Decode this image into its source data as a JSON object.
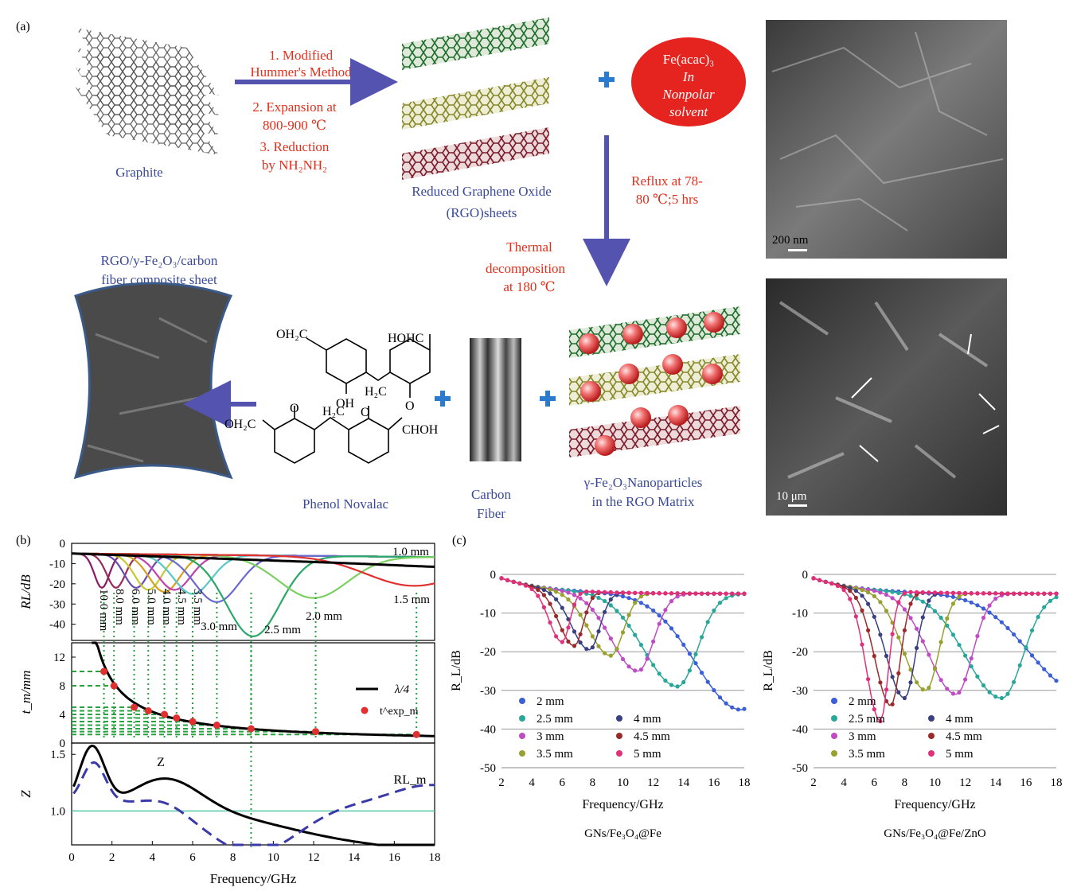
{
  "panel_a": {
    "label": "(a)",
    "graphite_label": "Graphite",
    "steps": [
      "1. Modified",
      "Hummer's Method",
      "2. Expansion at",
      "800-900 ℃",
      "3. Reduction",
      "by NH₂NH₂"
    ],
    "rgo_label_1": "Reduced Graphene Oxide",
    "rgo_label_2": "(RGO)sheets",
    "feacac_lines": [
      "Fe(acac)₃",
      "In",
      "Nonpolar",
      "solvent"
    ],
    "reflux_lines": [
      "Reflux at 78-",
      "80 ℃;5 hrs"
    ],
    "thermal_lines": [
      "Thermal",
      "decomposition",
      "at 180 ℃"
    ],
    "composite_lines": [
      "RGO/y-Fe₂O₃/carbon",
      "fiber composite sheet"
    ],
    "phenol_label": "Phenol Novalac",
    "chem_groups": [
      "OH₂C",
      "HOHC",
      "OH",
      "H₂C",
      "O",
      "O",
      "O",
      "OH₂C",
      "H₂C",
      "CHOH"
    ],
    "carbon_fiber_lines": [
      "Carbon",
      "Fiber"
    ],
    "nanoparticle_lines": [
      "γ-Fe₂O₃Nanoparticles",
      "in the RGO Matrix"
    ],
    "sem_scale_1": "200 nm",
    "sem_scale_2": "10 μm"
  },
  "colors": {
    "red_text": "#e0301e",
    "blue_text": "#3a4a9a",
    "arrow": "#5553b0",
    "plus": "#2a7ad0"
  },
  "chart_data": [
    {
      "type": "line",
      "panel": "(b) top",
      "ylabel": "RL/dB",
      "xlim": [
        0,
        18
      ],
      "ylim": [
        -48,
        0
      ],
      "yticks": [
        0,
        -10,
        -20,
        -30,
        -40
      ],
      "series": [
        {
          "name": "10.0 mm",
          "f0": 1.5,
          "min": -22
        },
        {
          "name": "8.0 mm",
          "f0": 2.2,
          "min": -22
        },
        {
          "name": "6.0 mm",
          "f0": 3.2,
          "min": -22
        },
        {
          "name": "5.0 mm",
          "f0": 3.8,
          "min": -23
        },
        {
          "name": "4.0 mm",
          "f0": 4.6,
          "min": -24
        },
        {
          "name": "4.5 mm",
          "f0": 5.1,
          "min": -23
        },
        {
          "name": "3.5 mm",
          "f0": 6.0,
          "min": -25
        },
        {
          "name": "3.0 mm",
          "f0": 7.2,
          "min": -29
        },
        {
          "name": "2.5 mm",
          "f0": 9.0,
          "min": -46
        },
        {
          "name": "2.0 mm",
          "f0": 12.0,
          "min": -27
        },
        {
          "name": "1.5 mm",
          "f0": 17.0,
          "min": -21
        },
        {
          "name": "1.0 mm",
          "f0": 22,
          "min": -12
        }
      ]
    },
    {
      "type": "scatter",
      "panel": "(b) middle",
      "ylabel": "t_m/mm",
      "yticks": [
        0,
        4,
        8,
        12
      ],
      "legend": [
        "λ/4",
        "t^exp_m"
      ],
      "points": [
        [
          1.6,
          10.0
        ],
        [
          2.1,
          8.0
        ],
        [
          3.1,
          5.0
        ],
        [
          3.8,
          4.5
        ],
        [
          4.6,
          4.0
        ],
        [
          5.2,
          3.5
        ],
        [
          6.0,
          3.0
        ],
        [
          7.2,
          2.5
        ],
        [
          8.9,
          2.0
        ],
        [
          12.1,
          1.6
        ],
        [
          17.1,
          1.2
        ]
      ]
    },
    {
      "type": "line",
      "panel": "(b) bottom",
      "ylabel": "Z",
      "xlabel": "Frequency/GHz",
      "xticks": [
        0,
        2,
        4,
        6,
        8,
        10,
        12,
        14,
        16,
        18
      ],
      "ylim": [
        0.7,
        1.6
      ],
      "yticks": [
        1.0,
        1.5
      ],
      "labels": [
        "Z",
        "RL_m"
      ]
    },
    {
      "type": "line",
      "panel": "(c) left",
      "title": "GNs/Fe₃O₄@Fe",
      "xlabel": "Frequency/GHz",
      "ylabel": "R_L/dB",
      "xlim": [
        2,
        18
      ],
      "ylim": [
        -50,
        0
      ],
      "xticks": [
        2,
        4,
        6,
        8,
        10,
        12,
        14,
        16,
        18
      ],
      "yticks": [
        0,
        -10,
        -20,
        -30,
        -40,
        -50
      ],
      "series": [
        {
          "name": "2 mm",
          "f0": 17.8,
          "min": -35,
          "color": "#3b5fd6"
        },
        {
          "name": "2.5 mm",
          "f0": 13.6,
          "min": -29,
          "color": "#2aa69a"
        },
        {
          "name": "3 mm",
          "f0": 11.0,
          "min": -25,
          "color": "#c04cc4"
        },
        {
          "name": "3.5 mm",
          "f0": 9.2,
          "min": -21,
          "color": "#98a030"
        },
        {
          "name": "4 mm",
          "f0": 7.8,
          "min": -19.5,
          "color": "#3a3f80"
        },
        {
          "name": "4.5 mm",
          "f0": 6.8,
          "min": -18.5,
          "color": "#9a2a2a"
        },
        {
          "name": "5 mm",
          "f0": 6.0,
          "min": -17.5,
          "color": "#e0307a"
        }
      ]
    },
    {
      "type": "line",
      "panel": "(c) right",
      "title": "GNs/Fe₃O₄@Fe/ZnO",
      "xlabel": "Frequency/GHz",
      "ylabel": "R_L/dB",
      "xlim": [
        2,
        18
      ],
      "ylim": [
        -50,
        0
      ],
      "xticks": [
        2,
        4,
        6,
        8,
        10,
        12,
        14,
        16,
        18
      ],
      "yticks": [
        0,
        -10,
        -20,
        -30,
        -40,
        -50
      ],
      "series": [
        {
          "name": "2 mm",
          "f0": 19.5,
          "min": -30,
          "color": "#3b5fd6"
        },
        {
          "name": "2.5 mm",
          "f0": 14.4,
          "min": -32,
          "color": "#2aa69a"
        },
        {
          "name": "3 mm",
          "f0": 11.4,
          "min": -31,
          "color": "#c04cc4"
        },
        {
          "name": "3.5 mm",
          "f0": 9.4,
          "min": -30,
          "color": "#98a030"
        },
        {
          "name": "4 mm",
          "f0": 8.0,
          "min": -32,
          "color": "#3a3f80"
        },
        {
          "name": "4.5 mm",
          "f0": 7.1,
          "min": -34,
          "color": "#9a2a2a"
        },
        {
          "name": "5 mm",
          "f0": 6.4,
          "min": -38,
          "color": "#e0307a"
        }
      ]
    }
  ],
  "panel_b_label": "(b)",
  "panel_c_label": "(c)"
}
